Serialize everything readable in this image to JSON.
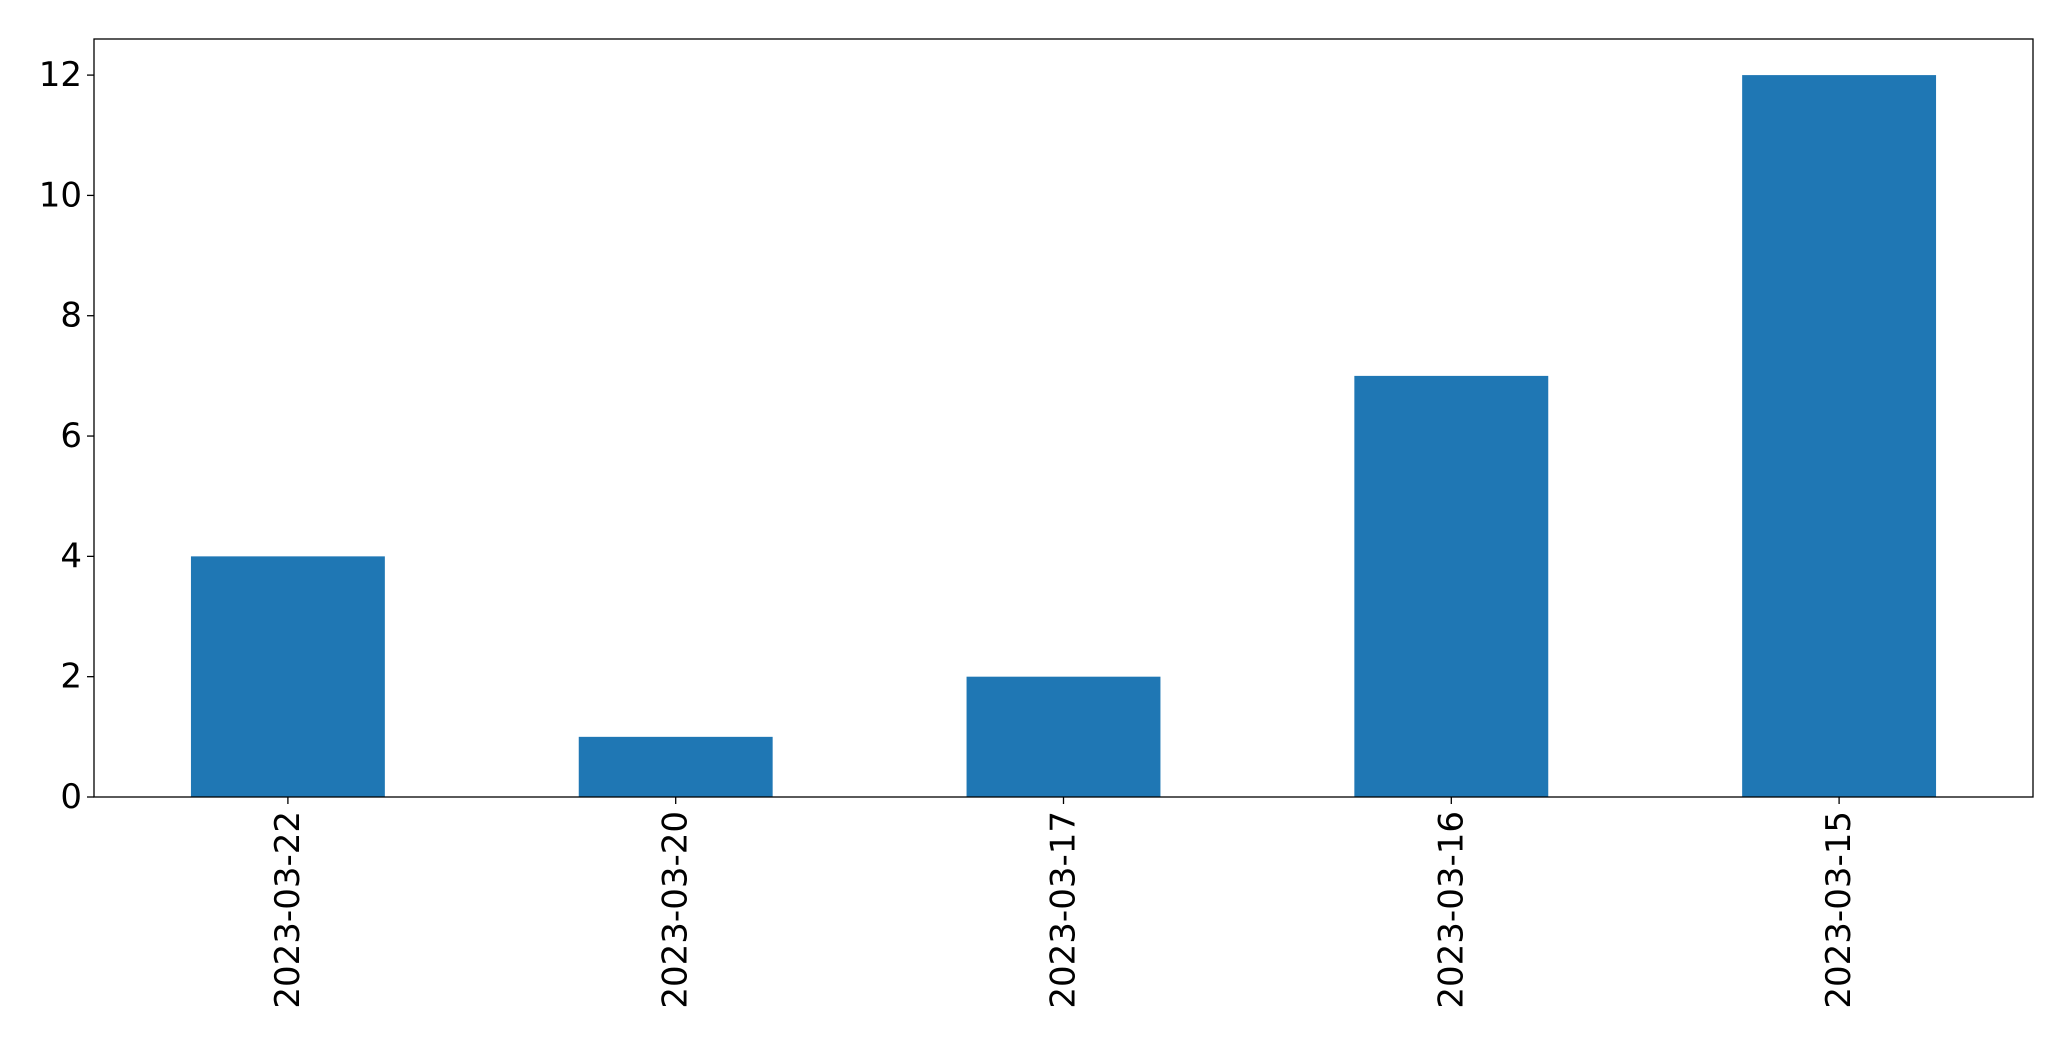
{
  "chart_data": {
    "type": "bar",
    "title": "",
    "xlabel": "",
    "ylabel": "",
    "categories": [
      "2023-03-22",
      "2023-03-20",
      "2023-03-17",
      "2023-03-16",
      "2023-03-15"
    ],
    "values": [
      4,
      1,
      2,
      7,
      12
    ],
    "ylim": [
      0,
      12.6
    ],
    "yticks": [
      0,
      2,
      4,
      6,
      8,
      10,
      12
    ],
    "x_tick_rotation": 90,
    "grid": false,
    "legend": "none",
    "colors": {
      "bar": "#1f77b4",
      "axis": "#000000"
    }
  }
}
